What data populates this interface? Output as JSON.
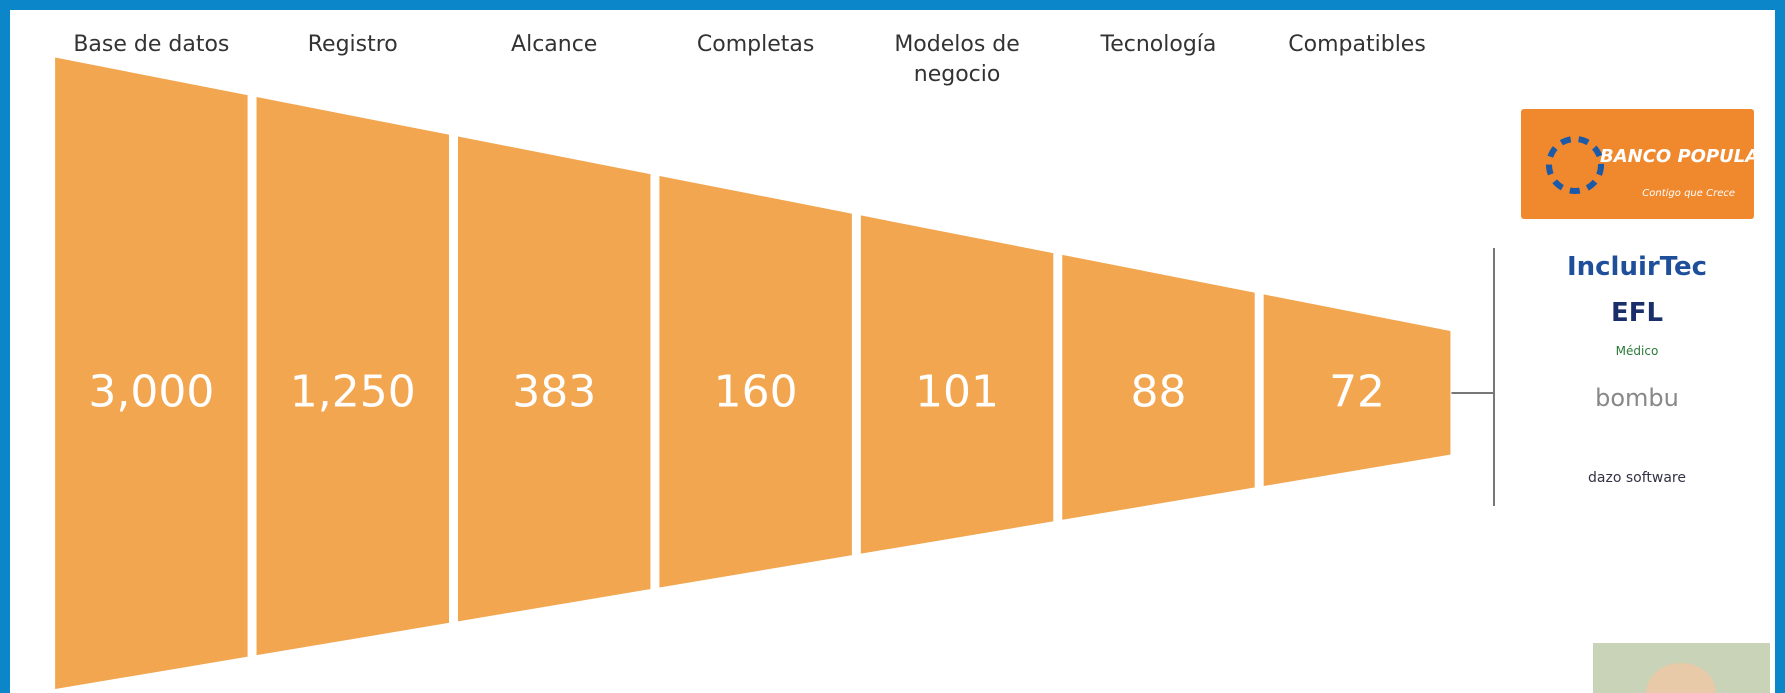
{
  "stages": [
    {
      "label": "Base de datos",
      "value": "3,000"
    },
    {
      "label": "Registro",
      "value": "1,250"
    },
    {
      "label": "Alcance",
      "value": "383"
    },
    {
      "label": "Completas",
      "value": "160"
    },
    {
      "label": "Modelos de negocio",
      "value": "101"
    },
    {
      "label": "Tecnología",
      "value": "88"
    },
    {
      "label": "Compatibles",
      "value": "72"
    }
  ],
  "logos": {
    "banco_popular": {
      "name": "BANCO POPULAR",
      "tagline": "Contigo que Crece"
    },
    "others": [
      "IncluirTec",
      "EFL",
      "Médico",
      "bombu",
      "dazo software"
    ]
  }
}
